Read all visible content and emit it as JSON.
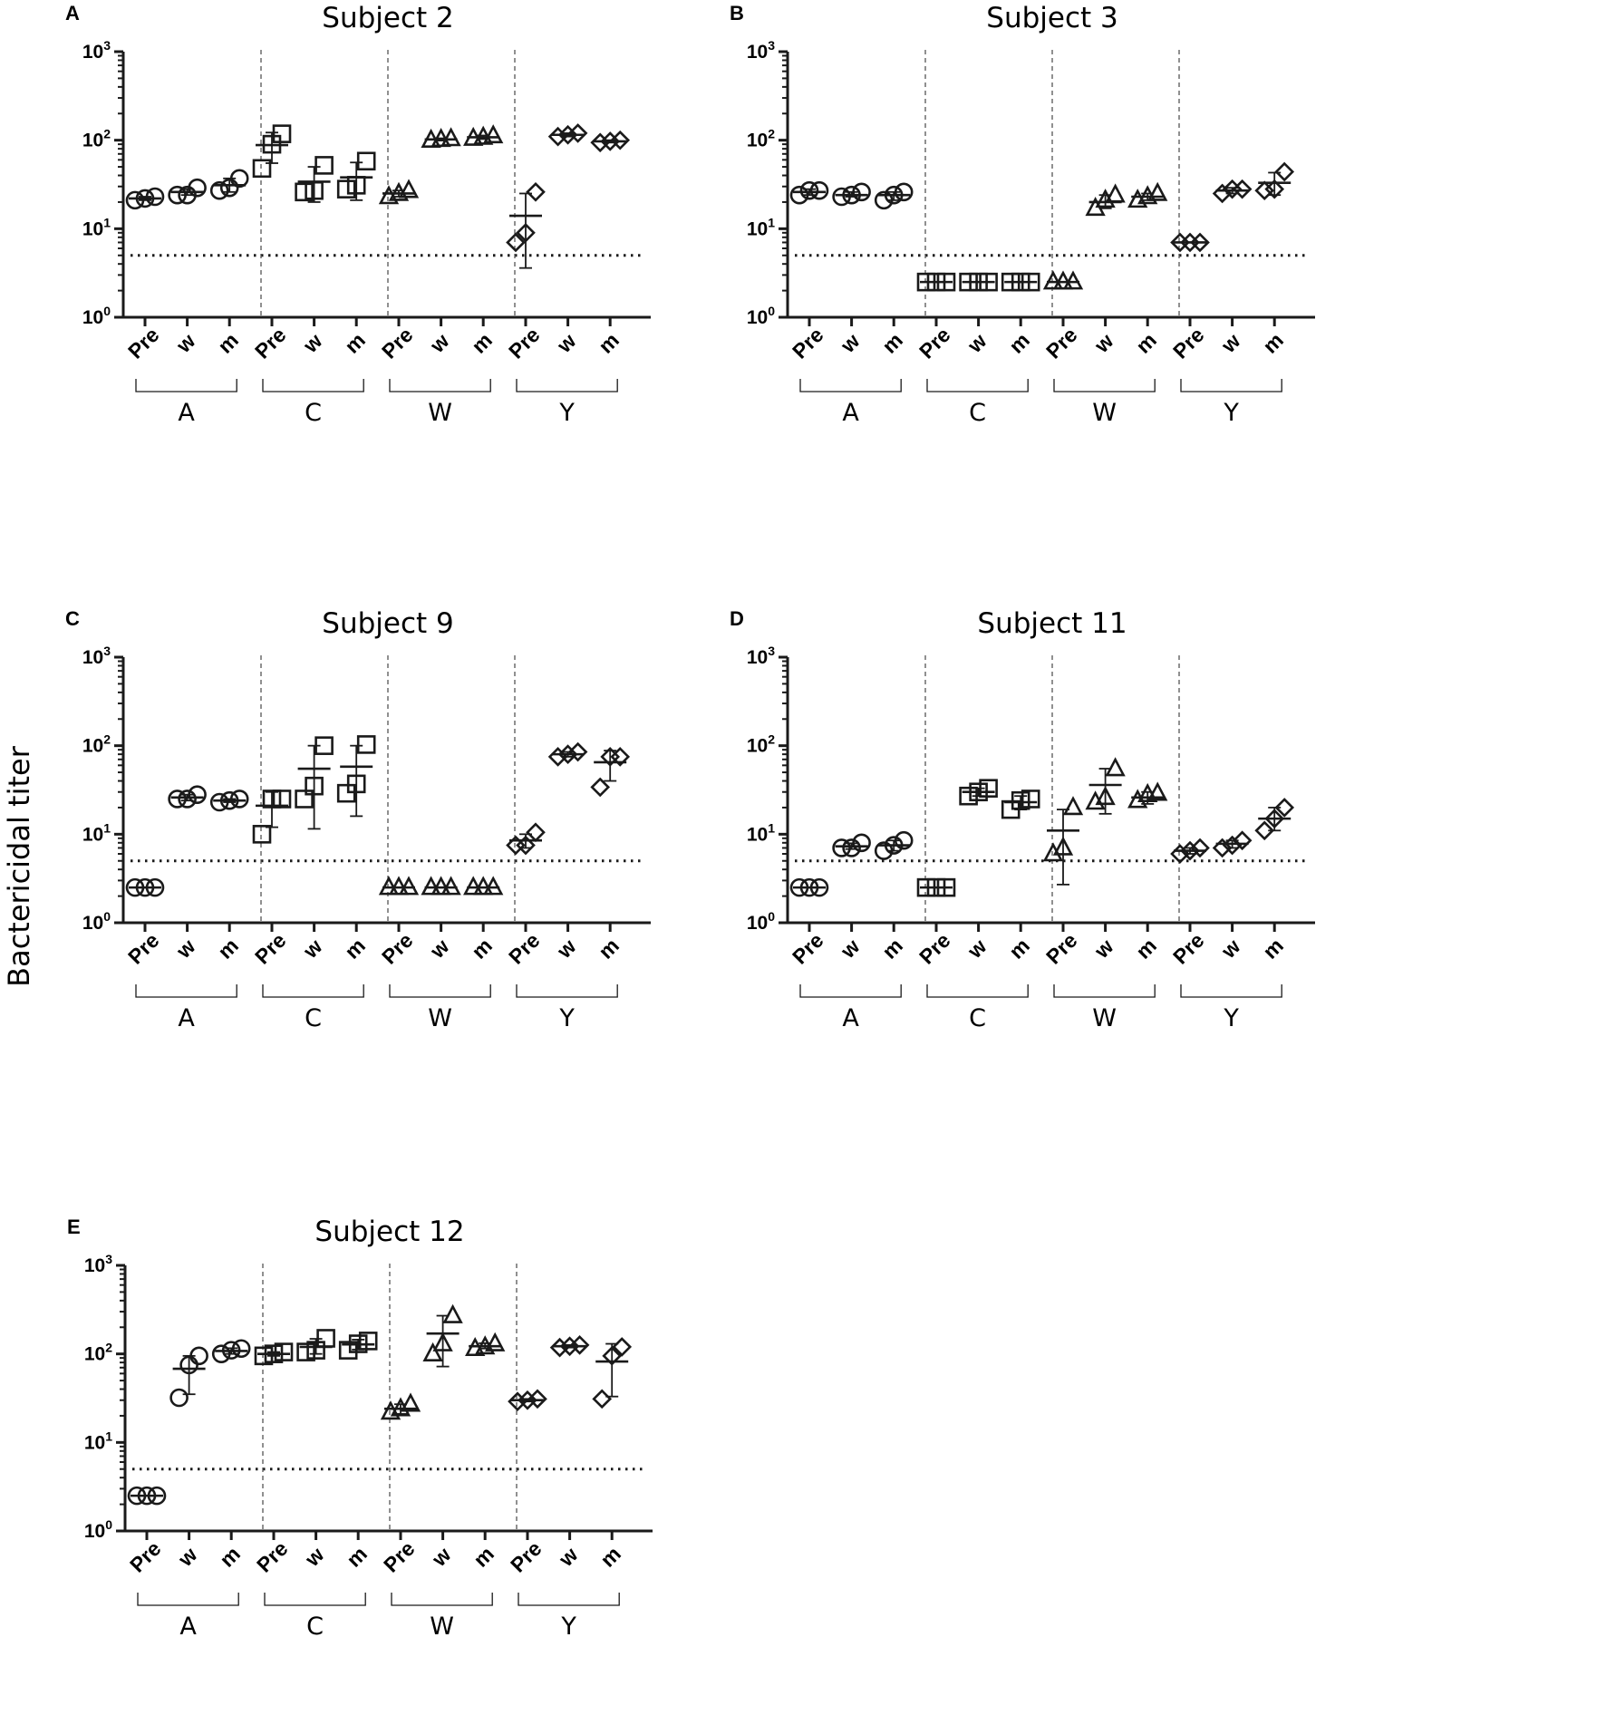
{
  "figure": {
    "y_axis_label": "Bactericidal titer",
    "detection_limit": 5,
    "ytick_base": "10",
    "ytick_exponents": [
      "0",
      "1",
      "2",
      "3"
    ],
    "groups": [
      "A",
      "C",
      "W",
      "Y"
    ],
    "timepoints": [
      "Pre",
      "w",
      "m"
    ],
    "group_markers": [
      "circle",
      "square",
      "triangle",
      "diamond"
    ],
    "line_color": "#1a1a1a"
  },
  "chart_data": [
    {
      "type": "scatter",
      "panel": "A",
      "title": "Subject 2",
      "ylabel": "Bactericidal titer",
      "yscale": "log10",
      "ylim": [
        1,
        1000
      ],
      "detection_limit": 5,
      "groups": [
        {
          "name": "A",
          "marker": "circle",
          "timepoints": [
            {
              "label": "Pre",
              "points": [
                21,
                22,
                23
              ],
              "mean": 22,
              "sd_lo": 21,
              "sd_hi": 23
            },
            {
              "label": "w",
              "points": [
                24,
                24,
                29
              ],
              "mean": 26,
              "sd_lo": 24,
              "sd_hi": 28
            },
            {
              "label": "m",
              "points": [
                27,
                29,
                37
              ],
              "mean": 31,
              "sd_lo": 26,
              "sd_hi": 37
            }
          ]
        },
        {
          "name": "C",
          "marker": "square",
          "timepoints": [
            {
              "label": "Pre",
              "points": [
                48,
                90,
                118
              ],
              "mean": 88,
              "sd_lo": 55,
              "sd_hi": 122
            },
            {
              "label": "w",
              "points": [
                26,
                27,
                52
              ],
              "mean": 34,
              "sd_lo": 20,
              "sd_hi": 50
            },
            {
              "label": "m",
              "points": [
                28,
                31,
                58
              ],
              "mean": 38,
              "sd_lo": 21,
              "sd_hi": 56
            }
          ]
        },
        {
          "name": "W",
          "marker": "triangle",
          "timepoints": [
            {
              "label": "Pre",
              "points": [
                23,
                25,
                27
              ],
              "mean": 25,
              "sd_lo": 23,
              "sd_hi": 27
            },
            {
              "label": "w",
              "points": [
                100,
                102,
                104
              ],
              "mean": 102,
              "sd_lo": 99,
              "sd_hi": 105
            },
            {
              "label": "m",
              "points": [
                105,
                108,
                112
              ],
              "mean": 108,
              "sd_lo": 103,
              "sd_hi": 113
            }
          ]
        },
        {
          "name": "Y",
          "marker": "diamond",
          "timepoints": [
            {
              "label": "Pre",
              "points": [
                7,
                9,
                26
              ],
              "mean": 14,
              "sd_lo": 3.6,
              "sd_hi": 25
            },
            {
              "label": "w",
              "points": [
                110,
                115,
                120
              ],
              "mean": 115,
              "sd_lo": 110,
              "sd_hi": 120
            },
            {
              "label": "m",
              "points": [
                94,
                97,
                100
              ],
              "mean": 97,
              "sd_lo": 94,
              "sd_hi": 100
            }
          ]
        }
      ]
    },
    {
      "type": "scatter",
      "panel": "B",
      "title": "Subject 3",
      "ylabel": "Bactericidal titer",
      "yscale": "log10",
      "ylim": [
        1,
        1000
      ],
      "detection_limit": 5,
      "groups": [
        {
          "name": "A",
          "marker": "circle",
          "timepoints": [
            {
              "label": "Pre",
              "points": [
                24,
                27,
                27
              ],
              "mean": 26,
              "sd_lo": 24,
              "sd_hi": 28
            },
            {
              "label": "w",
              "points": [
                23,
                24,
                26
              ],
              "mean": 24,
              "sd_lo": 23,
              "sd_hi": 26
            },
            {
              "label": "m",
              "points": [
                21,
                24,
                26
              ],
              "mean": 24,
              "sd_lo": 21,
              "sd_hi": 26
            }
          ]
        },
        {
          "name": "C",
          "marker": "square",
          "timepoints": [
            {
              "label": "Pre",
              "points": [
                2.5,
                2.5,
                2.5
              ],
              "mean": 2.5,
              "sd_lo": 2.5,
              "sd_hi": 2.5
            },
            {
              "label": "w",
              "points": [
                2.5,
                2.5,
                2.5
              ],
              "mean": 2.5,
              "sd_lo": 2.5,
              "sd_hi": 2.5
            },
            {
              "label": "m",
              "points": [
                2.5,
                2.5,
                2.5
              ],
              "mean": 2.5,
              "sd_lo": 2.5,
              "sd_hi": 2.5
            }
          ]
        },
        {
          "name": "W",
          "marker": "triangle",
          "timepoints": [
            {
              "label": "Pre",
              "points": [
                2.5,
                2.5,
                2.5
              ],
              "mean": 2.5,
              "sd_lo": 2.5,
              "sd_hi": 2.5
            },
            {
              "label": "w",
              "points": [
                17,
                21,
                24
              ],
              "mean": 20,
              "sd_lo": 17,
              "sd_hi": 24
            },
            {
              "label": "m",
              "points": [
                21,
                23,
                25
              ],
              "mean": 23,
              "sd_lo": 21,
              "sd_hi": 25
            }
          ]
        },
        {
          "name": "Y",
          "marker": "diamond",
          "timepoints": [
            {
              "label": "Pre",
              "points": [
                7,
                7,
                7
              ],
              "mean": 7,
              "sd_lo": 7,
              "sd_hi": 7
            },
            {
              "label": "w",
              "points": [
                25,
                28,
                28
              ],
              "mean": 27,
              "sd_lo": 25,
              "sd_hi": 29
            },
            {
              "label": "m",
              "points": [
                27,
                28,
                44
              ],
              "mean": 33,
              "sd_lo": 24,
              "sd_hi": 43
            }
          ]
        }
      ]
    },
    {
      "type": "scatter",
      "panel": "C",
      "title": "Subject 9",
      "ylabel": "Bactericidal titer",
      "yscale": "log10",
      "ylim": [
        1,
        1000
      ],
      "detection_limit": 5,
      "groups": [
        {
          "name": "A",
          "marker": "circle",
          "timepoints": [
            {
              "label": "Pre",
              "points": [
                2.5,
                2.5,
                2.5
              ],
              "mean": 2.5,
              "sd_lo": 2.5,
              "sd_hi": 2.5
            },
            {
              "label": "w",
              "points": [
                25,
                25,
                28
              ],
              "mean": 26,
              "sd_lo": 24,
              "sd_hi": 28
            },
            {
              "label": "m",
              "points": [
                23,
                24,
                25
              ],
              "mean": 24,
              "sd_lo": 23,
              "sd_hi": 25
            }
          ]
        },
        {
          "name": "C",
          "marker": "square",
          "timepoints": [
            {
              "label": "Pre",
              "points": [
                10,
                25,
                25
              ],
              "mean": 21,
              "sd_lo": 12,
              "sd_hi": 30
            },
            {
              "label": "w",
              "points": [
                25,
                35,
                100
              ],
              "mean": 55,
              "sd_lo": 11.5,
              "sd_hi": 100
            },
            {
              "label": "m",
              "points": [
                29,
                37,
                103
              ],
              "mean": 58,
              "sd_lo": 16,
              "sd_hi": 100
            }
          ]
        },
        {
          "name": "W",
          "marker": "triangle",
          "timepoints": [
            {
              "label": "Pre",
              "points": [
                2.5,
                2.5,
                2.5
              ],
              "mean": 2.5,
              "sd_lo": 2.5,
              "sd_hi": 2.5
            },
            {
              "label": "w",
              "points": [
                2.5,
                2.5,
                2.5
              ],
              "mean": 2.5,
              "sd_lo": 2.5,
              "sd_hi": 2.5
            },
            {
              "label": "m",
              "points": [
                2.5,
                2.5,
                2.5
              ],
              "mean": 2.5,
              "sd_lo": 2.5,
              "sd_hi": 2.5
            }
          ]
        },
        {
          "name": "Y",
          "marker": "diamond",
          "timepoints": [
            {
              "label": "Pre",
              "points": [
                7.5,
                7.5,
                10.5
              ],
              "mean": 8.5,
              "sd_lo": 7,
              "sd_hi": 10
            },
            {
              "label": "w",
              "points": [
                75,
                80,
                85
              ],
              "mean": 80,
              "sd_lo": 75,
              "sd_hi": 85
            },
            {
              "label": "m",
              "points": [
                34,
                75,
                75
              ],
              "mean": 65,
              "sd_lo": 40,
              "sd_hi": 88
            }
          ]
        }
      ]
    },
    {
      "type": "scatter",
      "panel": "D",
      "title": "Subject 11",
      "ylabel": "Bactericidal titer",
      "yscale": "log10",
      "ylim": [
        1,
        1000
      ],
      "detection_limit": 5,
      "groups": [
        {
          "name": "A",
          "marker": "circle",
          "timepoints": [
            {
              "label": "Pre",
              "points": [
                2.5,
                2.5,
                2.5
              ],
              "mean": 2.5,
              "sd_lo": 2.5,
              "sd_hi": 2.5
            },
            {
              "label": "w",
              "points": [
                7,
                7,
                8
              ],
              "mean": 7.3,
              "sd_lo": 6.8,
              "sd_hi": 7.9
            },
            {
              "label": "m",
              "points": [
                6.5,
                7.5,
                8.5
              ],
              "mean": 7.5,
              "sd_lo": 6.5,
              "sd_hi": 8.5
            }
          ]
        },
        {
          "name": "C",
          "marker": "square",
          "timepoints": [
            {
              "label": "Pre",
              "points": [
                2.5,
                2.5,
                2.5
              ],
              "mean": 2.5,
              "sd_lo": 2.5,
              "sd_hi": 2.5
            },
            {
              "label": "w",
              "points": [
                27,
                30,
                33
              ],
              "mean": 30,
              "sd_lo": 27,
              "sd_hi": 33
            },
            {
              "label": "m",
              "points": [
                19,
                24,
                25
              ],
              "mean": 23,
              "sd_lo": 19,
              "sd_hi": 27
            }
          ]
        },
        {
          "name": "W",
          "marker": "triangle",
          "timepoints": [
            {
              "label": "Pre",
              "points": [
                6,
                7,
                20
              ],
              "mean": 11,
              "sd_lo": 2.7,
              "sd_hi": 19
            },
            {
              "label": "w",
              "points": [
                23,
                26,
                55
              ],
              "mean": 36,
              "sd_lo": 17,
              "sd_hi": 55
            },
            {
              "label": "m",
              "points": [
                24,
                28,
                29
              ],
              "mean": 26,
              "sd_lo": 22,
              "sd_hi": 30
            }
          ]
        },
        {
          "name": "Y",
          "marker": "diamond",
          "timepoints": [
            {
              "label": "Pre",
              "points": [
                6,
                6.5,
                7
              ],
              "mean": 6.5,
              "sd_lo": 6,
              "sd_hi": 7
            },
            {
              "label": "w",
              "points": [
                7,
                7.5,
                8.5
              ],
              "mean": 7.8,
              "sd_lo": 7,
              "sd_hi": 8.5
            },
            {
              "label": "m",
              "points": [
                11,
                15,
                20
              ],
              "mean": 15,
              "sd_lo": 11,
              "sd_hi": 20
            }
          ]
        }
      ]
    },
    {
      "type": "scatter",
      "panel": "E",
      "title": "Subject 12",
      "ylabel": "Bactericidal titer",
      "yscale": "log10",
      "ylim": [
        1,
        1000
      ],
      "detection_limit": 5,
      "groups": [
        {
          "name": "A",
          "marker": "circle",
          "timepoints": [
            {
              "label": "Pre",
              "points": [
                2.5,
                2.5,
                2.5
              ],
              "mean": 2.5,
              "sd_lo": 2.5,
              "sd_hi": 2.5
            },
            {
              "label": "w",
              "points": [
                32,
                75,
                95
              ],
              "mean": 68,
              "sd_lo": 35,
              "sd_hi": 95
            },
            {
              "label": "m",
              "points": [
                100,
                110,
                115
              ],
              "mean": 108,
              "sd_lo": 100,
              "sd_hi": 116
            }
          ]
        },
        {
          "name": "C",
          "marker": "square",
          "timepoints": [
            {
              "label": "Pre",
              "points": [
                95,
                100,
                105
              ],
              "mean": 100,
              "sd_lo": 95,
              "sd_hi": 105
            },
            {
              "label": "w",
              "points": [
                105,
                110,
                150
              ],
              "mean": 120,
              "sd_lo": 100,
              "sd_hi": 148
            },
            {
              "label": "m",
              "points": [
                110,
                130,
                140
              ],
              "mean": 128,
              "sd_lo": 112,
              "sd_hi": 145
            }
          ]
        },
        {
          "name": "W",
          "marker": "triangle",
          "timepoints": [
            {
              "label": "Pre",
              "points": [
                22,
                24,
                27
              ],
              "mean": 24,
              "sd_lo": 21,
              "sd_hi": 27
            },
            {
              "label": "w",
              "points": [
                100,
                130,
                270
              ],
              "mean": 170,
              "sd_lo": 72,
              "sd_hi": 270
            },
            {
              "label": "m",
              "points": [
                115,
                120,
                130
              ],
              "mean": 122,
              "sd_lo": 115,
              "sd_hi": 132
            }
          ]
        },
        {
          "name": "Y",
          "marker": "diamond",
          "timepoints": [
            {
              "label": "Pre",
              "points": [
                29,
                30,
                31
              ],
              "mean": 30,
              "sd_lo": 29,
              "sd_hi": 31
            },
            {
              "label": "w",
              "points": [
                118,
                122,
                126
              ],
              "mean": 122,
              "sd_lo": 118,
              "sd_hi": 126
            },
            {
              "label": "m",
              "points": [
                31,
                95,
                120
              ],
              "mean": 82,
              "sd_lo": 33,
              "sd_hi": 130
            }
          ]
        }
      ]
    }
  ]
}
